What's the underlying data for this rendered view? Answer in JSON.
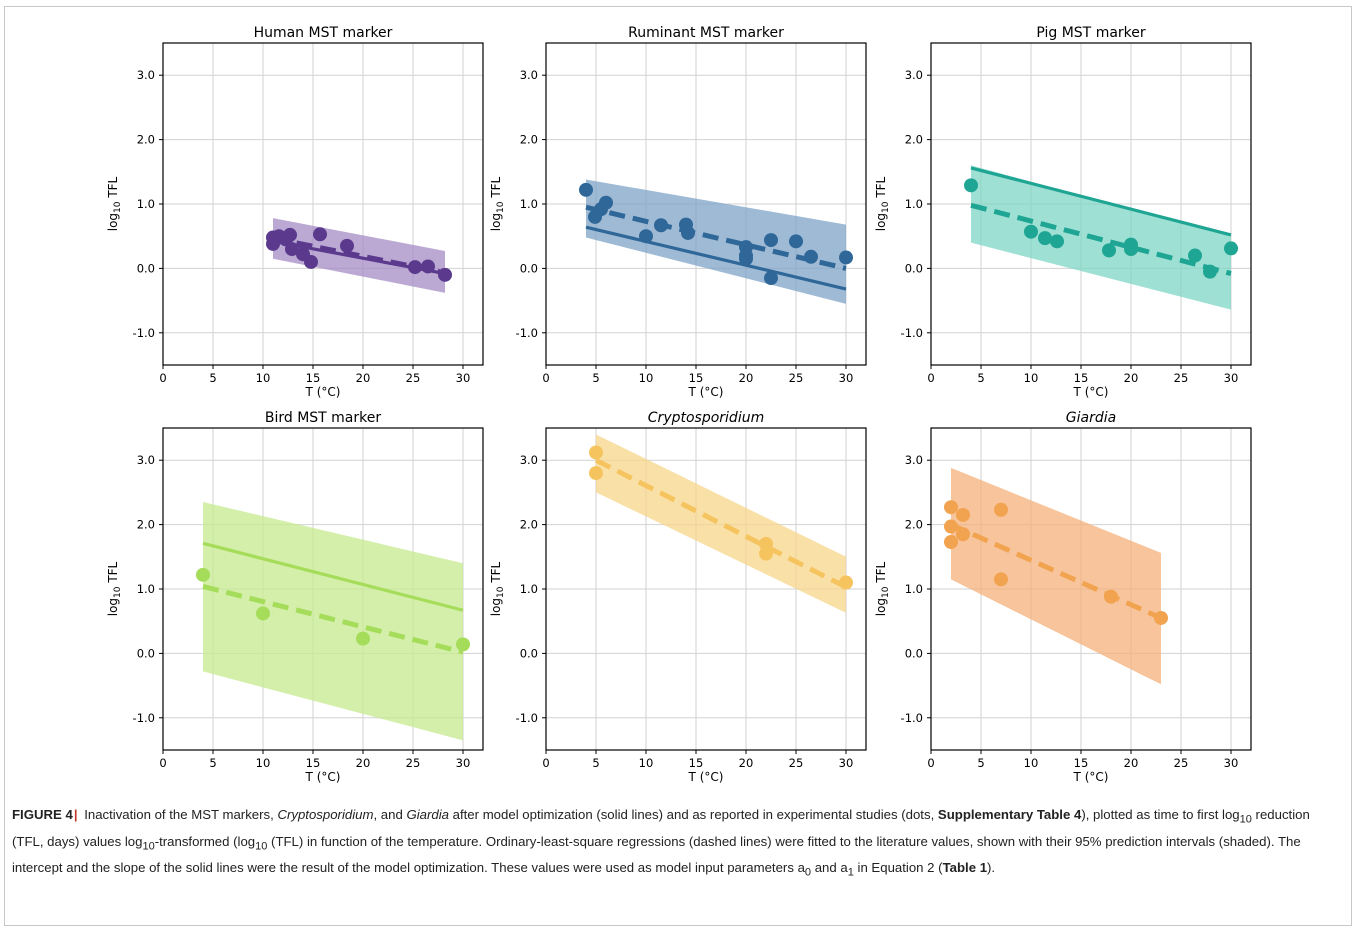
{
  "chart_data": [
    {
      "type": "scatter",
      "title": "Human MST marker",
      "title_italic": false,
      "xlabel": "T (°C)",
      "ylabel": "log10 TFL",
      "xlim": [
        0,
        32
      ],
      "ylim": [
        -1.5,
        3.5
      ],
      "xticks": [
        0,
        5,
        10,
        15,
        20,
        25,
        30
      ],
      "yticks": [
        -1.0,
        0.0,
        1.0,
        2.0,
        3.0
      ],
      "grid": true,
      "color": "#5b3a8e",
      "band_color": "#a48bc4",
      "points": [
        [
          11,
          0.48
        ],
        [
          11,
          0.38
        ],
        [
          11.6,
          0.5
        ],
        [
          12.3,
          0.45
        ],
        [
          12.7,
          0.52
        ],
        [
          12.9,
          0.3
        ],
        [
          14,
          0.22
        ],
        [
          14.8,
          0.1
        ],
        [
          15.7,
          0.53
        ],
        [
          18.4,
          0.35
        ],
        [
          25.2,
          0.02
        ],
        [
          26.5,
          0.03
        ],
        [
          28.2,
          -0.1
        ]
      ],
      "dashed_line": [
        [
          11,
          0.47
        ],
        [
          28.2,
          -0.07
        ]
      ],
      "solid_line": [
        [
          11,
          0.42
        ],
        [
          28.2,
          -0.08
        ]
      ],
      "band": {
        "x": [
          11,
          28.2
        ],
        "upper": [
          0.78,
          0.27
        ],
        "lower": [
          0.15,
          -0.38
        ]
      }
    },
    {
      "type": "scatter",
      "title": "Ruminant MST marker",
      "title_italic": false,
      "xlabel": "T (°C)",
      "ylabel": "log10 TFL",
      "xlim": [
        0,
        32
      ],
      "ylim": [
        -1.5,
        3.5
      ],
      "xticks": [
        0,
        5,
        10,
        15,
        20,
        25,
        30
      ],
      "yticks": [
        -1.0,
        0.0,
        1.0,
        2.0,
        3.0
      ],
      "grid": true,
      "color": "#2f6798",
      "band_color": "#7ea3c7",
      "points": [
        [
          4,
          1.22
        ],
        [
          4.9,
          0.8
        ],
        [
          5.5,
          0.92
        ],
        [
          6,
          1.02
        ],
        [
          10,
          0.5
        ],
        [
          11.5,
          0.67
        ],
        [
          14,
          0.68
        ],
        [
          14.2,
          0.55
        ],
        [
          20,
          0.33
        ],
        [
          20,
          0.2
        ],
        [
          20,
          0.15
        ],
        [
          22.5,
          0.44
        ],
        [
          22.5,
          -0.15
        ],
        [
          25,
          0.42
        ],
        [
          26.5,
          0.18
        ],
        [
          30,
          0.17
        ]
      ],
      "dashed_line": [
        [
          4,
          0.95
        ],
        [
          30,
          0.0
        ]
      ],
      "solid_line": [
        [
          4,
          0.64
        ],
        [
          30,
          -0.32
        ]
      ],
      "band": {
        "x": [
          4,
          30
        ],
        "upper": [
          1.38,
          0.68
        ],
        "lower": [
          0.48,
          -0.55
        ]
      }
    },
    {
      "type": "scatter",
      "title": "Pig MST marker",
      "title_italic": false,
      "xlabel": "T (°C)",
      "ylabel": "log10 TFL",
      "xlim": [
        0,
        32
      ],
      "ylim": [
        -1.5,
        3.5
      ],
      "xticks": [
        0,
        5,
        10,
        15,
        20,
        25,
        30
      ],
      "yticks": [
        -1.0,
        0.0,
        1.0,
        2.0,
        3.0
      ],
      "grid": true,
      "color": "#1fa593",
      "band_color": "#7dd5c6",
      "points": [
        [
          4,
          1.29
        ],
        [
          10,
          0.57
        ],
        [
          11.4,
          0.47
        ],
        [
          12.6,
          0.42
        ],
        [
          17.8,
          0.28
        ],
        [
          20,
          0.3
        ],
        [
          20,
          0.37
        ],
        [
          26.4,
          0.2
        ],
        [
          27.9,
          -0.05
        ],
        [
          30,
          0.31
        ]
      ],
      "dashed_line": [
        [
          4,
          0.98
        ],
        [
          30,
          -0.08
        ]
      ],
      "solid_line": [
        [
          4,
          1.56
        ],
        [
          30,
          0.52
        ]
      ],
      "band": {
        "x": [
          4,
          30
        ],
        "upper": [
          1.6,
          0.5
        ],
        "lower": [
          0.4,
          -0.64
        ]
      }
    },
    {
      "type": "scatter",
      "title": "Bird MST marker",
      "title_italic": false,
      "xlabel": "T (°C)",
      "ylabel": "log10 TFL",
      "xlim": [
        0,
        32
      ],
      "ylim": [
        -1.5,
        3.5
      ],
      "xticks": [
        0,
        5,
        10,
        15,
        20,
        25,
        30
      ],
      "yticks": [
        -1.0,
        0.0,
        1.0,
        2.0,
        3.0
      ],
      "grid": true,
      "color": "#a5dc5a",
      "band_color": "#c4ea8c",
      "points": [
        [
          4,
          1.22
        ],
        [
          10,
          0.62
        ],
        [
          20,
          0.23
        ],
        [
          30,
          0.14
        ]
      ],
      "dashed_line": [
        [
          4,
          1.04
        ],
        [
          30,
          0.02
        ]
      ],
      "solid_line": [
        [
          4,
          1.71
        ],
        [
          30,
          0.67
        ]
      ],
      "band": {
        "x": [
          4,
          30
        ],
        "upper": [
          2.35,
          1.4
        ],
        "lower": [
          -0.28,
          -1.35
        ]
      }
    },
    {
      "type": "scatter",
      "title": "Cryptosporidium",
      "title_italic": true,
      "xlabel": "T (°C)",
      "ylabel": "log10 TFL",
      "xlim": [
        0,
        32
      ],
      "ylim": [
        -1.5,
        3.5
      ],
      "xticks": [
        0,
        5,
        10,
        15,
        20,
        25,
        30
      ],
      "yticks": [
        -1.0,
        0.0,
        1.0,
        2.0,
        3.0
      ],
      "grid": true,
      "color": "#f6c45f",
      "band_color": "#f7d58a",
      "points": [
        [
          5,
          3.12
        ],
        [
          5,
          2.8
        ],
        [
          22,
          1.7
        ],
        [
          22,
          1.55
        ],
        [
          30,
          1.1
        ]
      ],
      "dashed_line": [
        [
          5,
          3.0
        ],
        [
          30,
          1.03
        ]
      ],
      "solid_line": null,
      "band": {
        "x": [
          5,
          30
        ],
        "upper": [
          3.4,
          1.5
        ],
        "lower": [
          2.5,
          0.63
        ]
      }
    },
    {
      "type": "scatter",
      "title": "Giardia",
      "title_italic": true,
      "xlabel": "T (°C)",
      "ylabel": "log10 TFL",
      "xlim": [
        0,
        32
      ],
      "ylim": [
        -1.5,
        3.5
      ],
      "xticks": [
        0,
        5,
        10,
        15,
        20,
        25,
        30
      ],
      "yticks": [
        -1.0,
        0.0,
        1.0,
        2.0,
        3.0
      ],
      "grid": true,
      "color": "#f1a34f",
      "band_color": "#f4b07a",
      "points": [
        [
          2,
          2.27
        ],
        [
          2,
          1.97
        ],
        [
          2,
          1.73
        ],
        [
          3.2,
          2.15
        ],
        [
          3.2,
          1.85
        ],
        [
          7,
          2.23
        ],
        [
          7,
          1.15
        ],
        [
          18,
          0.88
        ],
        [
          23,
          0.55
        ]
      ],
      "dashed_line": [
        [
          2,
          2.0
        ],
        [
          23,
          0.55
        ]
      ],
      "solid_line": null,
      "band": {
        "x": [
          2,
          23
        ],
        "upper": [
          2.88,
          1.56
        ],
        "lower": [
          1.15,
          -0.48
        ]
      }
    }
  ],
  "caption": {
    "fig_label": "FIGURE 4",
    "separator": "|",
    "p1": " Inactivation of the MST markers, ",
    "p1_italic": "Cryptosporidium",
    "p2": ", and ",
    "p2_italic": "Giardia",
    "p3": " after model optimization (solid lines) and as reported in experimental studies (dots, ",
    "p3_bold": "Supplementary Table 4",
    "p4": "), plotted as time to first log",
    "p4_sub": "10",
    "p5": " reduction (TFL, days) values log",
    "p5_sub": "10",
    "p6": "-transformed (log",
    "p6_sub": "10",
    "p7": " (TFL) in function of the temperature. Ordinary-least-square regressions (dashed lines) were fitted to the literature values, shown with their 95% prediction intervals (shaded). The intercept and the slope of the solid lines were the result of the model optimization. These values were used as model input parameters a",
    "p7_sub": "0",
    "p8": " and a",
    "p8_sub": "1",
    "p9": " in Equation 2 (",
    "p9_bold": "Table 1",
    "p10": ")."
  }
}
